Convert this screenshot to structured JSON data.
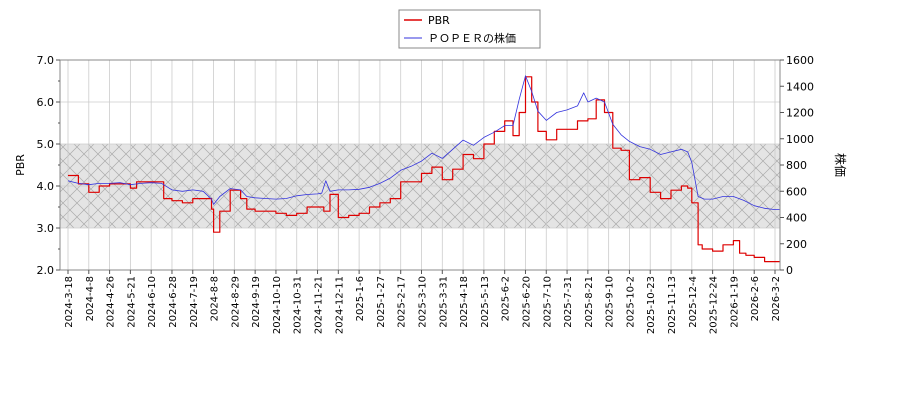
{
  "chart_data": {
    "type": "line",
    "legend": {
      "placement": "top-center",
      "entries": [
        {
          "label": "PBR",
          "color": "#dd0000"
        },
        {
          "label": "ＰＯＰＥＲの株価",
          "color": "#3333dd"
        }
      ]
    },
    "y_left": {
      "label": "PBR",
      "range": [
        2.0,
        7.0
      ],
      "ticks": [
        "2.0",
        "3.0",
        "4.0",
        "5.0",
        "6.0",
        "7.0"
      ]
    },
    "y_right": {
      "label": "株価",
      "range": [
        0,
        1600
      ],
      "ticks": [
        "0",
        "200",
        "400",
        "600",
        "800",
        "1000",
        "1200",
        "1400",
        "1600"
      ]
    },
    "shaded_band": {
      "axis": "left",
      "from": 3.0,
      "to": 5.0,
      "pattern": "crosshatch"
    },
    "grid": true,
    "x_ticks": [
      "2024-3-18",
      "2024-4-8",
      "2024-4-26",
      "2024-5-21",
      "2024-6-10",
      "2024-6-28",
      "2024-7-19",
      "2024-8-8",
      "2024-8-29",
      "2024-9-19",
      "2024-10-10",
      "2024-10-31",
      "2024-11-21",
      "2024-12-11",
      "2025-1-6",
      "2025-1-27",
      "2025-2-17",
      "2025-3-10",
      "2025-3-31",
      "2025-4-18",
      "2025-5-13",
      "2025-6-2",
      "2025-6-20",
      "2025-7-10",
      "2025-7-31",
      "2025-8-21",
      "2025-9-10",
      "2025-10-2",
      "2025-10-23",
      "2025-11-13",
      "2025-12-4",
      "2025-12-24",
      "2026-1-19",
      "2026-2-6",
      "2026-3-2"
    ],
    "series": [
      {
        "name": "PBR",
        "axis": "left",
        "color": "#dd0000",
        "points": [
          [
            0,
            4.25
          ],
          [
            0.5,
            4.05
          ],
          [
            1,
            3.85
          ],
          [
            1.5,
            4.0
          ],
          [
            2,
            4.05
          ],
          [
            2.5,
            4.05
          ],
          [
            3,
            3.95
          ],
          [
            3.3,
            4.1
          ],
          [
            4,
            4.1
          ],
          [
            4.4,
            4.1
          ],
          [
            4.6,
            3.7
          ],
          [
            5,
            3.65
          ],
          [
            5.5,
            3.6
          ],
          [
            6,
            3.7
          ],
          [
            6.5,
            3.7
          ],
          [
            6.9,
            3.45
          ],
          [
            7,
            2.9
          ],
          [
            7.3,
            3.4
          ],
          [
            7.8,
            3.9
          ],
          [
            8.3,
            3.7
          ],
          [
            8.6,
            3.45
          ],
          [
            9,
            3.4
          ],
          [
            9.5,
            3.4
          ],
          [
            10,
            3.35
          ],
          [
            10.5,
            3.3
          ],
          [
            11,
            3.35
          ],
          [
            11.5,
            3.5
          ],
          [
            12,
            3.5
          ],
          [
            12.3,
            3.4
          ],
          [
            12.6,
            3.8
          ],
          [
            13,
            3.25
          ],
          [
            13.5,
            3.3
          ],
          [
            14,
            3.35
          ],
          [
            14.5,
            3.5
          ],
          [
            15,
            3.6
          ],
          [
            15.5,
            3.7
          ],
          [
            16,
            4.1
          ],
          [
            16.5,
            4.1
          ],
          [
            17,
            4.3
          ],
          [
            17.5,
            4.45
          ],
          [
            18,
            4.15
          ],
          [
            18.5,
            4.4
          ],
          [
            19,
            4.75
          ],
          [
            19.5,
            4.65
          ],
          [
            20,
            5.0
          ],
          [
            20.5,
            5.3
          ],
          [
            21,
            5.55
          ],
          [
            21.4,
            5.2
          ],
          [
            21.7,
            5.75
          ],
          [
            22,
            6.6
          ],
          [
            22.3,
            6.0
          ],
          [
            22.6,
            5.3
          ],
          [
            23,
            5.1
          ],
          [
            23.5,
            5.35
          ],
          [
            24,
            5.35
          ],
          [
            24.5,
            5.55
          ],
          [
            25,
            5.6
          ],
          [
            25.4,
            6.05
          ],
          [
            25.8,
            5.75
          ],
          [
            26.2,
            4.9
          ],
          [
            26.6,
            4.85
          ],
          [
            27,
            4.15
          ],
          [
            27.5,
            4.2
          ],
          [
            28,
            3.85
          ],
          [
            28.5,
            3.7
          ],
          [
            29,
            3.9
          ],
          [
            29.5,
            4.0
          ],
          [
            29.8,
            3.95
          ],
          [
            30,
            3.6
          ],
          [
            30.3,
            2.6
          ],
          [
            30.5,
            2.5
          ],
          [
            31,
            2.45
          ],
          [
            31.5,
            2.6
          ],
          [
            32,
            2.7
          ],
          [
            32.3,
            2.4
          ],
          [
            32.6,
            2.35
          ],
          [
            33,
            2.3
          ],
          [
            33.5,
            2.2
          ],
          [
            34,
            2.2
          ],
          [
            34.5,
            2.25
          ],
          [
            34.8,
            2.2
          ]
        ]
      },
      {
        "name": "ＰＯＰＥＲの株価",
        "axis": "right",
        "color": "#3333dd",
        "points": [
          [
            0,
            680
          ],
          [
            0.5,
            660
          ],
          [
            1,
            650
          ],
          [
            1.5,
            660
          ],
          [
            2,
            660
          ],
          [
            2.5,
            665
          ],
          [
            3,
            650
          ],
          [
            3.5,
            660
          ],
          [
            4,
            665
          ],
          [
            4.5,
            660
          ],
          [
            4.8,
            630
          ],
          [
            5,
            610
          ],
          [
            5.5,
            600
          ],
          [
            6,
            610
          ],
          [
            6.5,
            600
          ],
          [
            6.9,
            540
          ],
          [
            7,
            500
          ],
          [
            7.3,
            560
          ],
          [
            7.8,
            620
          ],
          [
            8.3,
            610
          ],
          [
            8.6,
            560
          ],
          [
            9,
            550
          ],
          [
            9.5,
            545
          ],
          [
            10,
            540
          ],
          [
            10.5,
            545
          ],
          [
            11,
            565
          ],
          [
            11.5,
            575
          ],
          [
            12,
            580
          ],
          [
            12.2,
            585
          ],
          [
            12.4,
            680
          ],
          [
            12.6,
            600
          ],
          [
            13,
            610
          ],
          [
            13.5,
            610
          ],
          [
            14,
            615
          ],
          [
            14.5,
            630
          ],
          [
            15,
            660
          ],
          [
            15.5,
            700
          ],
          [
            16,
            760
          ],
          [
            16.5,
            790
          ],
          [
            17,
            830
          ],
          [
            17.5,
            890
          ],
          [
            18,
            850
          ],
          [
            18.5,
            920
          ],
          [
            19,
            990
          ],
          [
            19.5,
            950
          ],
          [
            20,
            1010
          ],
          [
            20.5,
            1050
          ],
          [
            21,
            1100
          ],
          [
            21.4,
            1100
          ],
          [
            21.7,
            1300
          ],
          [
            22,
            1480
          ],
          [
            22.3,
            1360
          ],
          [
            22.6,
            1210
          ],
          [
            23,
            1140
          ],
          [
            23.5,
            1200
          ],
          [
            24,
            1220
          ],
          [
            24.5,
            1250
          ],
          [
            24.8,
            1350
          ],
          [
            25,
            1280
          ],
          [
            25.4,
            1310
          ],
          [
            25.8,
            1280
          ],
          [
            26.2,
            1110
          ],
          [
            26.6,
            1030
          ],
          [
            27,
            980
          ],
          [
            27.5,
            940
          ],
          [
            28,
            920
          ],
          [
            28.5,
            880
          ],
          [
            29,
            900
          ],
          [
            29.5,
            920
          ],
          [
            29.8,
            900
          ],
          [
            30,
            820
          ],
          [
            30.3,
            560
          ],
          [
            30.6,
            540
          ],
          [
            31,
            540
          ],
          [
            31.5,
            560
          ],
          [
            32,
            560
          ],
          [
            32.5,
            530
          ],
          [
            33,
            490
          ],
          [
            33.5,
            470
          ],
          [
            34,
            460
          ],
          [
            34.5,
            460
          ],
          [
            34.8,
            490
          ]
        ]
      }
    ]
  }
}
